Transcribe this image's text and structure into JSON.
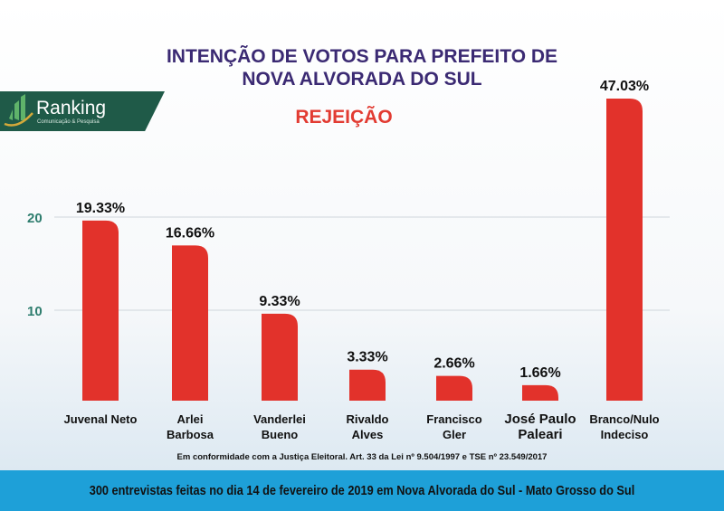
{
  "title_line1": "INTENÇÃO DE VOTOS PARA PREFEITO DE",
  "title_line2": "NOVA ALVORADA DO SUL",
  "logo": {
    "name": "Ranking",
    "tagline": "Comunicação & Pesquisa"
  },
  "note": "Em conformidade com a Justiça Eleitoral. Art. 33 da Lei nº 9.504/1997 e TSE nº 23.549/2017",
  "footer": "300 entrevistas feitas no dia 14 de fevereiro de 2019 em Nova Alvorada do Sul - Mato Grosso do Sul",
  "chart_data": {
    "type": "bar",
    "title": "INTENÇÃO DE VOTOS PARA PREFEITO DE NOVA ALVORADA DO SUL",
    "subtitle": "REJEIÇÃO",
    "categories": [
      [
        "Juvenal Neto"
      ],
      [
        "Arlei",
        "Barbosa"
      ],
      [
        "Vanderlei",
        "Bueno"
      ],
      [
        "Rivaldo",
        "Alves"
      ],
      [
        "Francisco",
        "Gler"
      ],
      [
        "José Paulo",
        "Paleari"
      ],
      [
        "Branco/Nulo",
        "Indeciso"
      ]
    ],
    "values": [
      19.33,
      16.66,
      9.33,
      3.33,
      2.66,
      1.66,
      47.03
    ],
    "data_labels": [
      "19.33%",
      "16.66%",
      "9.33%",
      "3.33%",
      "2.66%",
      "1.66%",
      "47.03%"
    ],
    "yticks": [
      10,
      20
    ],
    "grid": true,
    "colors": {
      "bar": "#e2322b",
      "tick": "#2e7d6e",
      "grid": "#cfd6dc"
    }
  }
}
